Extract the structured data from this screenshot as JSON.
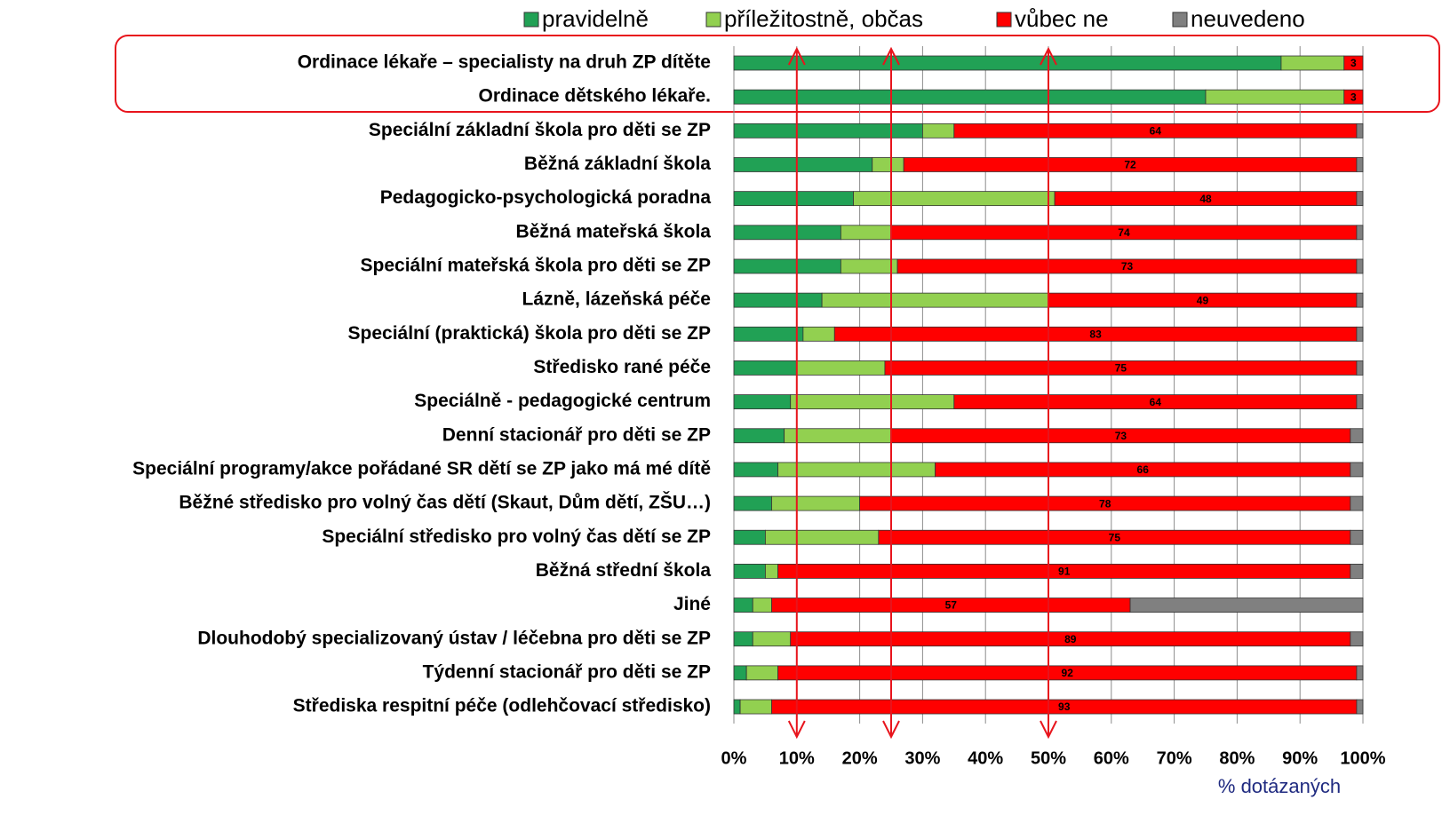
{
  "chart_data": {
    "type": "stacked_barh",
    "categories": [
      "Ordinace lékaře – specialisty na druh ZP dítěte",
      "Ordinace dětského lékaře.",
      "Speciální základní škola pro děti se ZP",
      "Běžná základní škola",
      "Pedagogicko-psychologická poradna",
      "Běžná mateřská škola",
      "Speciální mateřská škola pro děti se ZP",
      "Lázně, lázeňská péče",
      "Speciální (praktická) škola pro děti se ZP",
      "Středisko rané péče",
      "Speciálně - pedagogické centrum",
      "Denní stacionář pro děti se ZP",
      "Speciální programy/akce pořádané SR dětí se ZP jako má mé dítě",
      "Běžné středisko pro volný čas dětí (Skaut, Dům dětí, ZŠU…)",
      "Speciální středisko pro volný čas dětí se ZP",
      "Běžná střední škola",
      "Jiné",
      "Dlouhodobý specializovaný ústav / léčebna pro děti se ZP",
      "Týdenní stacionář pro děti se ZP",
      "Střediska respitní péče (odlehčovací středisko)"
    ],
    "series": [
      {
        "name": "pravidelně",
        "color": "#21a155",
        "values": [
          87,
          75,
          30,
          22,
          19,
          17,
          17,
          14,
          11,
          10,
          9,
          8,
          7,
          6,
          5,
          5,
          3,
          3,
          2,
          1
        ]
      },
      {
        "name": "příležitostně, občas",
        "color": "#92d050",
        "values": [
          10,
          22,
          5,
          5,
          32,
          8,
          9,
          36,
          5,
          14,
          26,
          17,
          25,
          14,
          18,
          2,
          3,
          6,
          5,
          5
        ]
      },
      {
        "name": "vůbec ne",
        "color": "#ff0000",
        "show_labels": true,
        "values": [
          3,
          3,
          64,
          72,
          48,
          74,
          73,
          49,
          83,
          75,
          64,
          73,
          66,
          78,
          75,
          91,
          57,
          89,
          92,
          93
        ]
      },
      {
        "name": "neuvedeno",
        "color": "#808080",
        "values": [
          0,
          0,
          1,
          1,
          1,
          1,
          1,
          1,
          1,
          1,
          1,
          2,
          2,
          2,
          2,
          2,
          37,
          2,
          1,
          1
        ]
      }
    ],
    "xlim": [
      0,
      100
    ],
    "xticks": [
      {
        "value": 0,
        "label": "0%"
      },
      {
        "value": 10,
        "label": "10%"
      },
      {
        "value": 20,
        "label": "20%"
      },
      {
        "value": 30,
        "label": "30%"
      },
      {
        "value": 40,
        "label": "40%"
      },
      {
        "value": 50,
        "label": "50%"
      },
      {
        "value": 60,
        "label": "60%"
      },
      {
        "value": 70,
        "label": "70%"
      },
      {
        "value": 80,
        "label": "80%"
      },
      {
        "value": 90,
        "label": "90%"
      },
      {
        "value": 100,
        "label": "100%"
      }
    ],
    "xlabel": "% dotázaných",
    "grid": true,
    "reference_arrows": [
      10,
      25,
      50
    ],
    "annotation_color": "#e8141c"
  }
}
